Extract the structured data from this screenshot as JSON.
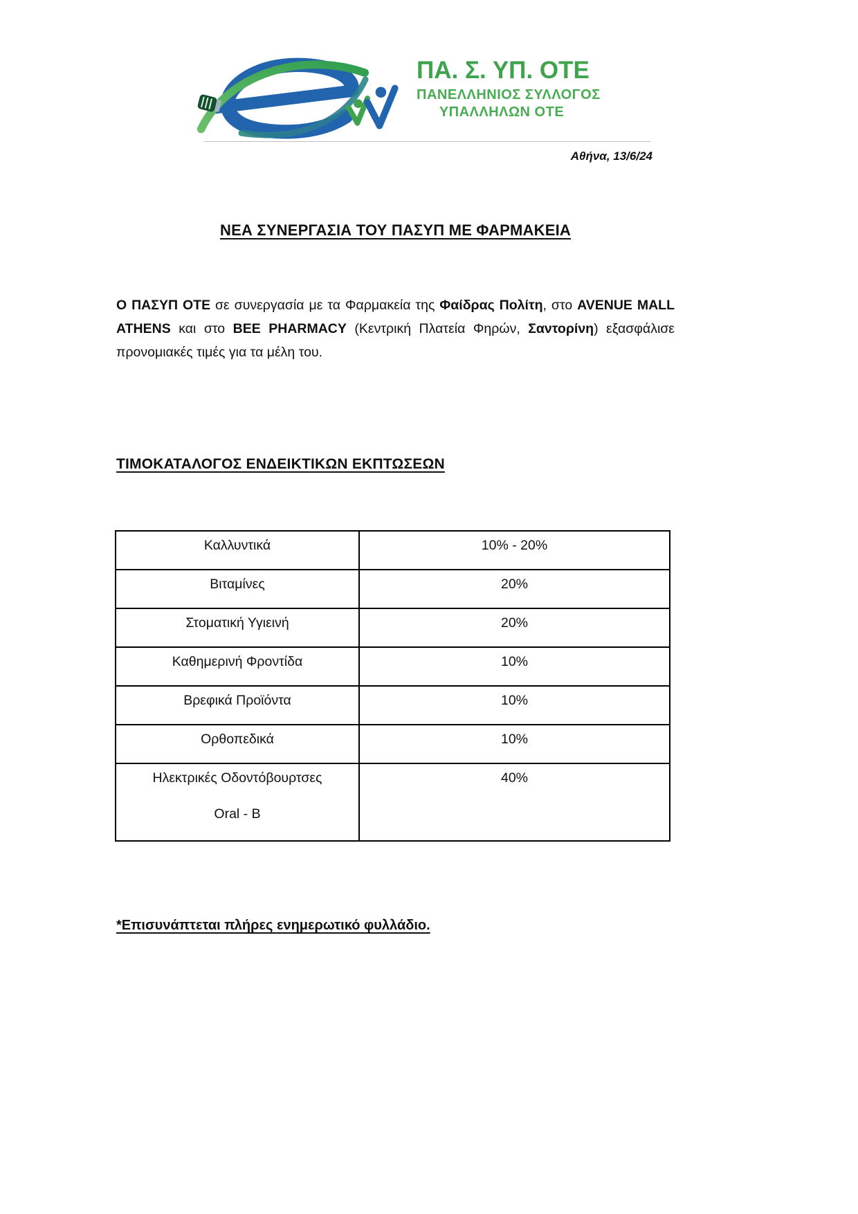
{
  "logo": {
    "acronym": "ΠΑ. Σ. ΥΠ. ΟΤΕ",
    "subtitle_line1": "ΠΑΝΕΛΛΗΝΙΟΣ ΣΥΛΛΟΓΟΣ",
    "subtitle_line2": "ΥΠΑΛΛΗΛΩΝ ΟΤΕ",
    "green": "#3fa34d",
    "green_light": "#4aac52",
    "blue": "#2264ae"
  },
  "dateline": "Αθήνα, 13/6/24",
  "title": "ΝΕΑ ΣΥΝΕΡΓΑΣΙΑ ΤΟΥ ΠΑΣΥΠ ΜΕ ΦΑΡΜΑΚΕΙΑ",
  "intro_paragraph": {
    "segments": [
      {
        "text": "Ο ΠΑΣΥΠ ΟΤΕ",
        "bold": true
      },
      {
        "text": " σε συνεργασία με τα Φαρμακεία της ",
        "bold": false
      },
      {
        "text": "Φαίδρας Πολίτη",
        "bold": true
      },
      {
        "text": ", στο ",
        "bold": false
      },
      {
        "text": "AVENUE MALL ATHENS",
        "bold": true
      },
      {
        "text": " και στο ",
        "bold": false
      },
      {
        "text": "BEE PHARMACY",
        "bold": true
      },
      {
        "text": " (Κεντρική Πλατεία Φηρών, ",
        "bold": false
      },
      {
        "text": "Σαντορίνη",
        "bold": true
      },
      {
        "text": ") εξασφάλισε προνομιακές τιμές για τα μέλη του.",
        "bold": false
      }
    ]
  },
  "section_heading": "ΤΙΜΟΚΑΤΑΛΟΓΟΣ ΕΝΔΕΙΚΤΙΚΩΝ ΕΚΠΤΩΣΕΩΝ",
  "discount_table": {
    "rows": [
      {
        "category": "Καλλυντικά",
        "discount": "10% - 20%"
      },
      {
        "category": "Βιταμίνες",
        "discount": "20%"
      },
      {
        "category": "Στοματική Υγιεινή",
        "discount": "20%"
      },
      {
        "category": "Καθημερινή Φροντίδα",
        "discount": "10%"
      },
      {
        "category": "Βρεφικά Προϊόντα",
        "discount": "10%"
      },
      {
        "category": "Ορθοπεδικά",
        "discount": "10%"
      },
      {
        "category": "Ηλεκτρικές Οδοντόβουρτσες",
        "category_line2": "Oral - B",
        "discount": "40%"
      }
    ]
  },
  "footnote": "*Επισυνάπτεται πλήρες ενημερωτικό φυλλάδιο."
}
